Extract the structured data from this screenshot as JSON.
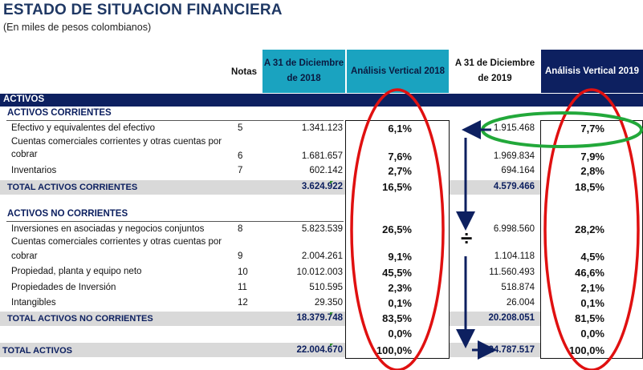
{
  "title": "ESTADO DE SITUACION FINANCIERA",
  "subtitle": "(En miles de pesos colombianos)",
  "headers": {
    "notas": "Notas",
    "col2018": "A 31 de Diciembre de 2018",
    "av2018": "Análisis Vertical 2018",
    "col2019": "A 31 de Diciembre de 2019",
    "av2019": "Análisis Vertical 2019"
  },
  "band_label": "ACTIVOS",
  "section_corrientes": "ACTIVOS CORRIENTES",
  "section_no_corrientes": "ACTIVOS NO CORRIENTES",
  "rows_corrientes": [
    {
      "label": "Efectivo y equivalentes del efectivo",
      "nota": "5",
      "v2018": "1.341.123",
      "av2018": "6,1%",
      "v2019": "1.915.468",
      "av2019": "7,7%"
    },
    {
      "label": "Cuentas comerciales corrientes y otras cuentas por",
      "label2": "cobrar",
      "nota": "6",
      "v2018": "1.681.657",
      "av2018": "7,6%",
      "v2019": "1.969.834",
      "av2019": "7,9%"
    },
    {
      "label": "Inventarios",
      "nota": "7",
      "v2018": "602.142",
      "av2018": "2,7%",
      "v2019": "694.164",
      "av2019": "2,8%"
    }
  ],
  "total_corrientes": {
    "label": "TOTAL ACTIVOS CORRIENTES",
    "v2018": "3.624.922",
    "av2018": "16,5%",
    "v2019": "4.579.466",
    "av2019": "18,5%"
  },
  "rows_no_corrientes": [
    {
      "label": "Inversiones en asociadas y negocios conjuntos",
      "nota": "8",
      "v2018": "5.823.539",
      "av2018": "26,5%",
      "v2019": "6.998.560",
      "av2019": "28,2%"
    },
    {
      "label": "Cuentas comerciales corrientes y otras cuentas por",
      "label2": "cobrar",
      "nota": "9",
      "v2018": "2.004.261",
      "av2018": "9,1%",
      "v2019": "1.104.118",
      "av2019": "4,5%"
    },
    {
      "label": "Propiedad, planta y equipo neto",
      "nota": "10",
      "v2018": "10.012.003",
      "av2018": "45,5%",
      "v2019": "11.560.493",
      "av2019": "46,6%"
    },
    {
      "label": "Propiedades de Inversión",
      "nota": "11",
      "v2018": "510.595",
      "av2018": "2,3%",
      "v2019": "518.874",
      "av2019": "2,1%"
    },
    {
      "label": "Intangibles",
      "nota": "12",
      "v2018": "29.350",
      "av2018": "0,1%",
      "v2019": "26.004",
      "av2019": "0,1%"
    }
  ],
  "total_no_corrientes": {
    "label": "TOTAL ACTIVOS NO CORRIENTES",
    "v2018": "18.379.748",
    "av2018": "83,5%",
    "v2019": "20.208.051",
    "av2019": "81,5%"
  },
  "zero_row": {
    "av2018": "0,0%",
    "av2019": "0,0%"
  },
  "total_activos": {
    "label": "TOTAL ACTIVOS",
    "v2018": "22.004.670",
    "av2018": "100,0%",
    "v2019": "24.787.517",
    "av2019": "100,0%"
  },
  "division_symbol": "÷",
  "colors": {
    "navy": "#0d2060",
    "teal": "#1aa3c0",
    "red_ellipse": "#e01010",
    "green_ellipse": "#22a83a",
    "grey_row": "#d9d9d9"
  }
}
